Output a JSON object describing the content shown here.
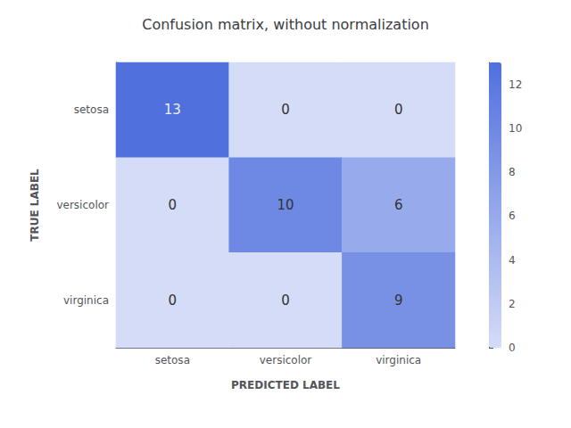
{
  "chart_data": {
    "type": "heatmap",
    "title": "Confusion matrix, without normalization",
    "categories": [
      "setosa",
      "versicolor",
      "virginica"
    ],
    "matrix": [
      [
        13,
        0,
        0
      ],
      [
        0,
        10,
        6
      ],
      [
        0,
        0,
        9
      ]
    ],
    "xlabel": "PREDICTED LABEL",
    "ylabel": "TRUE LABEL",
    "colorbar_range": [
      0,
      13
    ],
    "colorbar_ticks": [
      0,
      2,
      4,
      6,
      8,
      10,
      12
    ],
    "data_labels": true,
    "grid": false
  }
}
